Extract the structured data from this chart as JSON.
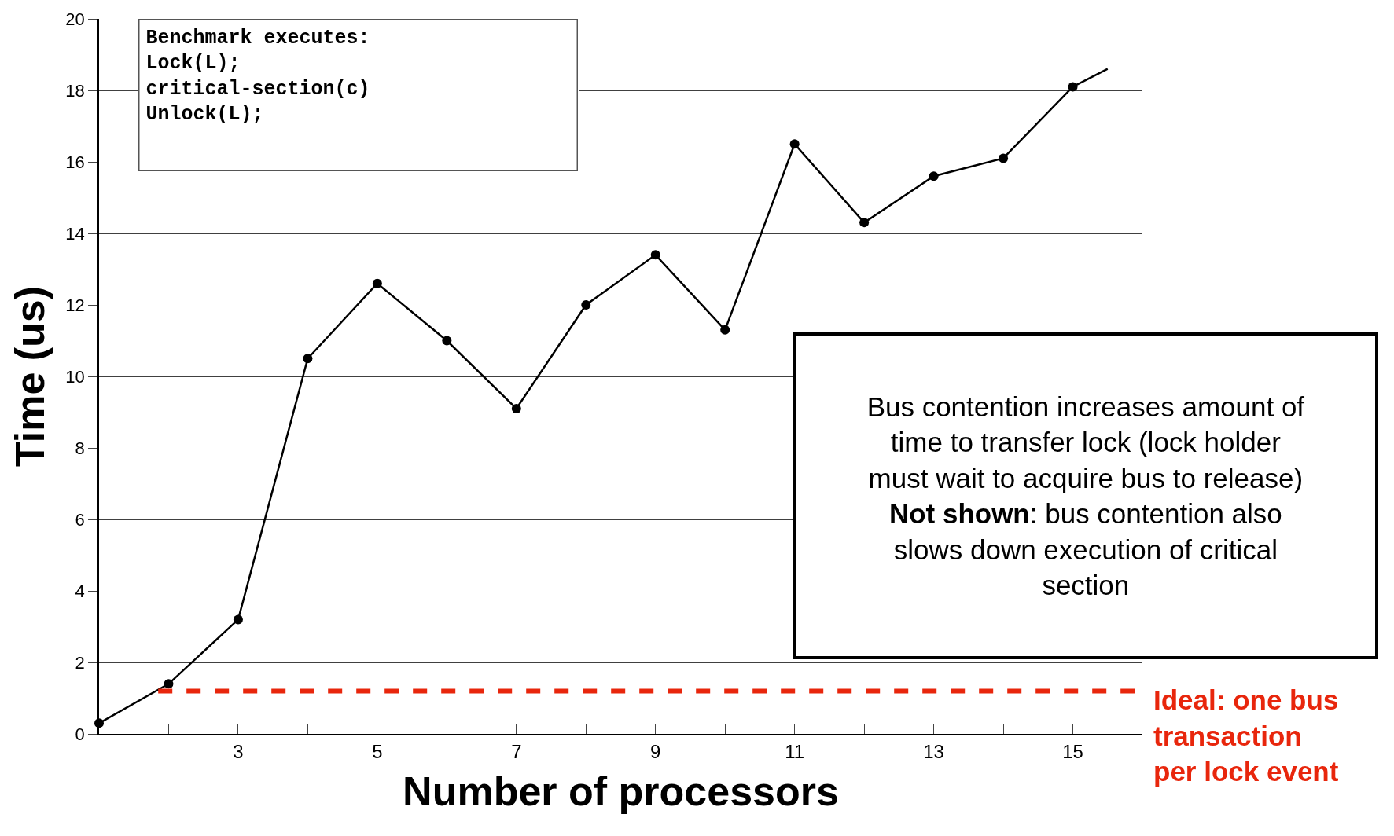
{
  "chart_data": {
    "type": "line",
    "xlabel": "Number of processors",
    "ylabel": "Time (us)",
    "xlim": [
      1,
      16
    ],
    "xticks": [
      {
        "value": 2,
        "label": null
      },
      3,
      {
        "value": 4,
        "label": null
      },
      5,
      {
        "value": 6,
        "label": null
      },
      7,
      {
        "value": 8,
        "label": null
      },
      9,
      {
        "value": 10,
        "label": null
      },
      11,
      {
        "value": 12,
        "label": null
      },
      13,
      {
        "value": 14,
        "label": null
      },
      15
    ],
    "ylim": [
      0,
      20
    ],
    "yticks": [
      0,
      2,
      4,
      6,
      8,
      10,
      12,
      14,
      16,
      18,
      20
    ],
    "grid": false,
    "series": [
      {
        "color": "#000000",
        "marker": "circle",
        "x": [
          1,
          2,
          3,
          4,
          5,
          6,
          7,
          8,
          9,
          10,
          11,
          12,
          13,
          14,
          15
        ],
        "values": [
          0.3,
          1.4,
          3.2,
          10.5,
          12.6,
          11.0,
          9.1,
          12.0,
          13.4,
          11.3,
          16.5,
          14.3,
          15.6,
          16.1,
          18.1
        ]
      },
      {
        "color": "#000000",
        "marker": "none",
        "x": [
          15,
          15.5
        ],
        "values": [
          18.1,
          18.6
        ]
      },
      {
        "color": "#e8260c",
        "marker": "none",
        "line_style": "dashed",
        "x": [
          1.85,
          16
        ],
        "values": [
          1.2,
          1.2
        ]
      }
    ],
    "ref_lines": [
      {
        "axis": "y",
        "value": 2,
        "color": "#000000"
      },
      {
        "axis": "y",
        "value": 6,
        "color": "#000000"
      },
      {
        "axis": "y",
        "value": 10,
        "color": "#000000"
      },
      {
        "axis": "y",
        "value": 14,
        "color": "#000000"
      },
      {
        "axis": "y",
        "value": 18,
        "color": "#000000"
      }
    ],
    "annotations": [
      "Benchmark executes:\nLock(L);\ncritical-section(c)\nUnlock(L);",
      "Bus contention increases amount of\ntime to transfer lock (lock holder\nmust wait to acquire bus to release)\nNot shown: bus contention also\nslows down execution of critical\nsection",
      {
        "text": "Ideal: one bus\ntransaction\nper lock event",
        "x": 16,
        "y": 1.2
      }
    ]
  }
}
